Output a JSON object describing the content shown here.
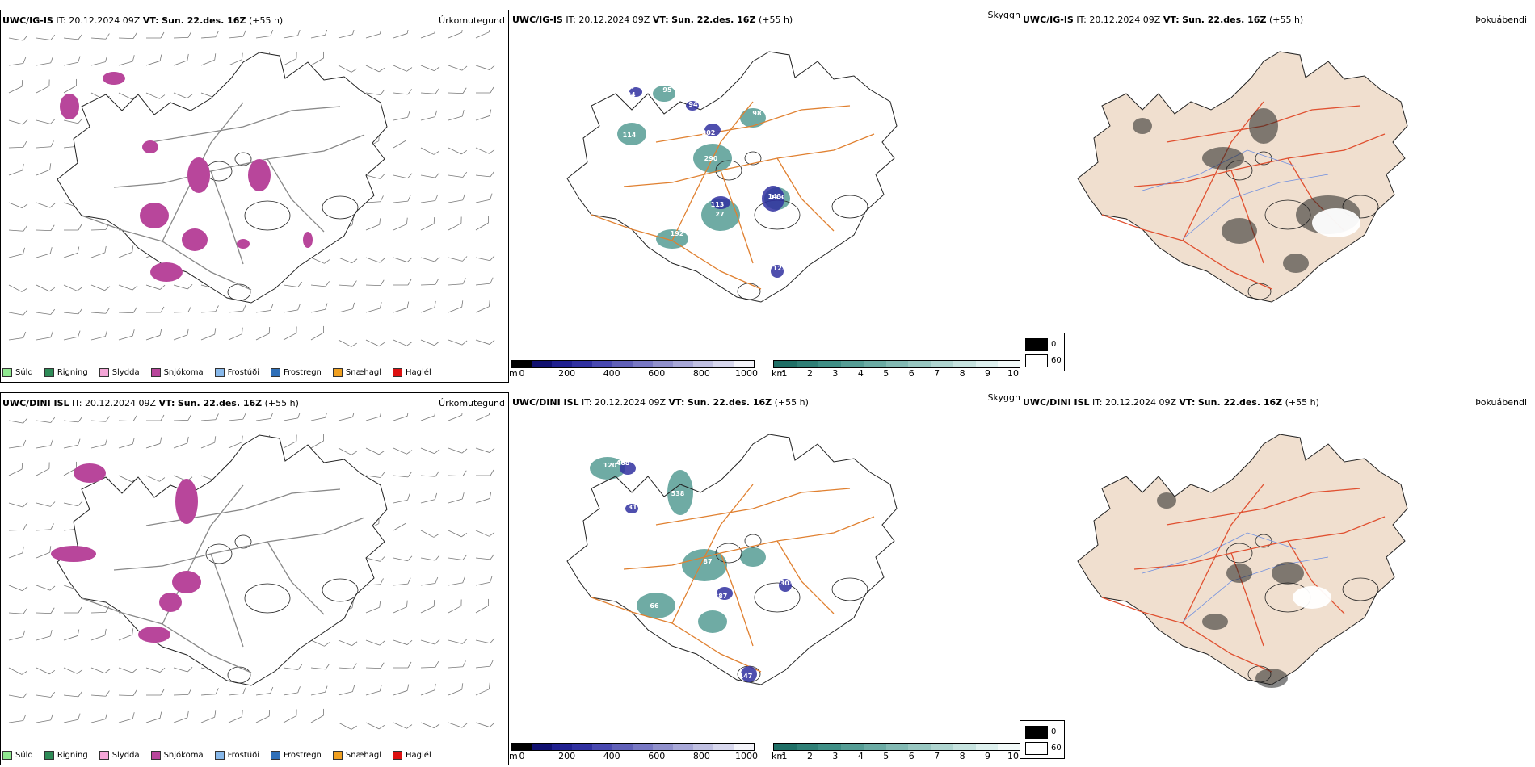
{
  "panels": [
    {
      "header": {
        "model": "UWC/IG-IS",
        "it_label": "IT:",
        "it": "20.12.2024 09Z",
        "vt_label": "VT:",
        "vt": "Sun. 22.des. 16Z",
        "lead": "(+55 h)"
      },
      "kind": "Úrkomutegund"
    },
    {
      "header": {
        "model": "UWC/IG-IS",
        "it_label": "IT:",
        "it": "20.12.2024 09Z",
        "vt_label": "VT:",
        "vt": "Sun. 22.des. 16Z",
        "lead": "(+55 h)"
      },
      "kind": "Skyggni"
    },
    {
      "header": {
        "model": "UWC/IG-IS",
        "it_label": "IT:",
        "it": "20.12.2024 09Z",
        "vt_label": "VT:",
        "vt": "Sun. 22.des. 16Z",
        "lead": "(+55 h)"
      },
      "kind": "Þokuábendi"
    },
    {
      "header": {
        "model": "UWC/DINI ISL",
        "it_label": "IT:",
        "it": "20.12.2024 09Z",
        "vt_label": "VT:",
        "vt": "Sun. 22.des. 16Z",
        "lead": "(+55 h)"
      },
      "kind": "Úrkomutegund"
    },
    {
      "header": {
        "model": "UWC/DINI ISL",
        "it_label": "IT:",
        "it": "20.12.2024 09Z",
        "vt_label": "VT:",
        "vt": "Sun. 22.des. 16Z",
        "lead": "(+55 h)"
      },
      "kind": "Skyggni"
    },
    {
      "header": {
        "model": "UWC/DINI ISL",
        "it_label": "IT:",
        "it": "20.12.2024 09Z",
        "vt_label": "VT:",
        "vt": "Sun. 22.des. 16Z",
        "lead": "(+55 h)"
      },
      "kind": "Þokuábendi"
    }
  ],
  "precip_legend": [
    {
      "label": "Súld",
      "color": "#8fe88f"
    },
    {
      "label": "Rigning",
      "color": "#2e8b57"
    },
    {
      "label": "Slydda",
      "color": "#f4a6d7"
    },
    {
      "label": "Snjókoma",
      "color": "#b8469b"
    },
    {
      "label": "Frostúði",
      "color": "#87b8ea"
    },
    {
      "label": "Frostregn",
      "color": "#2f6fb8"
    },
    {
      "label": "Snæhagl",
      "color": "#f0a020"
    },
    {
      "label": "Haglél",
      "color": "#dd1111"
    }
  ],
  "ceiling_bar": {
    "unit": "m",
    "ticks": [
      "0",
      "200",
      "400",
      "600",
      "800",
      "1000"
    ],
    "colors": [
      "#000000",
      "#101070",
      "#202090",
      "#3030a0",
      "#4848b0",
      "#6060b8",
      "#7878c4",
      "#9090cc",
      "#a8a8d8",
      "#c0c0e2",
      "#d8d8ee",
      "#f4f4fa"
    ]
  },
  "vis_bar": {
    "unit": "km",
    "ticks": [
      "1",
      "2",
      "3",
      "4",
      "5",
      "6",
      "7",
      "8",
      "9",
      "10"
    ],
    "colors": [
      "#1f6f66",
      "#2f7f76",
      "#3f8f86",
      "#559d95",
      "#6babA4",
      "#82b9b3",
      "#98c7c1",
      "#afd5d0",
      "#c6e3df",
      "#ddf0ee",
      "#f2faf9"
    ]
  },
  "fog_legend": [
    {
      "label": "0",
      "color": "#000000"
    },
    {
      "label": "60",
      "color": "#ffffff"
    }
  ],
  "ceiling_labels_top": [
    "17",
    "94",
    "302",
    "143",
    "113",
    "123",
    "114",
    "95",
    "290",
    "98",
    "27",
    "192",
    "113",
    "84"
  ],
  "ceiling_labels_bottom": [
    "468",
    "31",
    "387",
    "303",
    "147",
    "120",
    "538",
    "87",
    "66"
  ],
  "colors": {
    "coast": "#222222",
    "roads_orange": "#e08030",
    "roads_red": "#e05030",
    "land_fog": "#f0dfcf",
    "rivers": "#6f8fe0",
    "snow": "#b8469b",
    "vis": "#3f8f86",
    "ceil": "#3030a0"
  }
}
